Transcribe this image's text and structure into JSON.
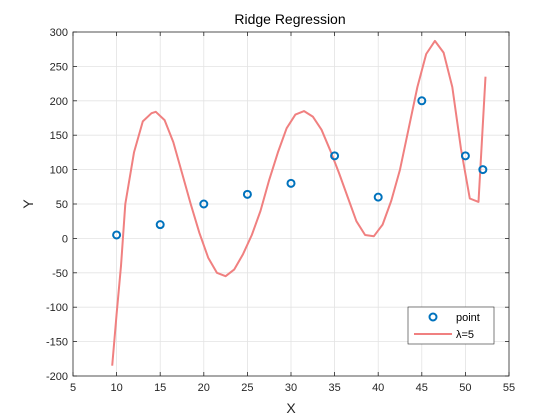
{
  "chart_data": {
    "type": "scatter",
    "title": "Ridge Regression",
    "xlabel": "X",
    "ylabel": "Y",
    "xlim": [
      5,
      55
    ],
    "ylim": [
      -200,
      300
    ],
    "xticks": [
      5,
      10,
      15,
      20,
      25,
      30,
      35,
      40,
      45,
      50,
      55
    ],
    "yticks": [
      -200,
      -150,
      -100,
      -50,
      0,
      50,
      100,
      150,
      200,
      250,
      300
    ],
    "grid": true,
    "legend_position": "bottom-right",
    "series": [
      {
        "name": "point",
        "kind": "scatter",
        "color": "#0072BD",
        "x": [
          10,
          15,
          20,
          25,
          30,
          35,
          40,
          45,
          50,
          52
        ],
        "y": [
          5,
          20,
          50,
          64,
          80,
          120,
          60,
          200,
          120,
          100
        ]
      },
      {
        "name": "λ=5",
        "kind": "line",
        "color": "#F08080",
        "x": [
          9.5,
          10,
          10.5,
          11,
          12,
          13,
          14,
          14.5,
          15.5,
          16.5,
          17.5,
          18.5,
          19.5,
          20.5,
          21.5,
          22.5,
          23.5,
          24.5,
          25.5,
          26.5,
          27.5,
          28.5,
          29.5,
          30.5,
          31.5,
          32.5,
          33.5,
          34.5,
          35.5,
          36.5,
          37.5,
          38.5,
          39.5,
          40.5,
          41.5,
          42.5,
          43.5,
          44.5,
          45.5,
          46.5,
          47.5,
          48.5,
          49.5,
          50.5,
          51.5,
          52.3
        ],
        "y": [
          -185,
          -110,
          -40,
          50,
          125,
          170,
          182,
          184,
          172,
          140,
          95,
          50,
          8,
          -28,
          -50,
          -55,
          -45,
          -23,
          5,
          40,
          85,
          125,
          160,
          180,
          185,
          177,
          158,
          128,
          95,
          60,
          25,
          5,
          3,
          20,
          55,
          100,
          160,
          220,
          268,
          287,
          270,
          220,
          130,
          58,
          53,
          235
        ]
      }
    ]
  }
}
